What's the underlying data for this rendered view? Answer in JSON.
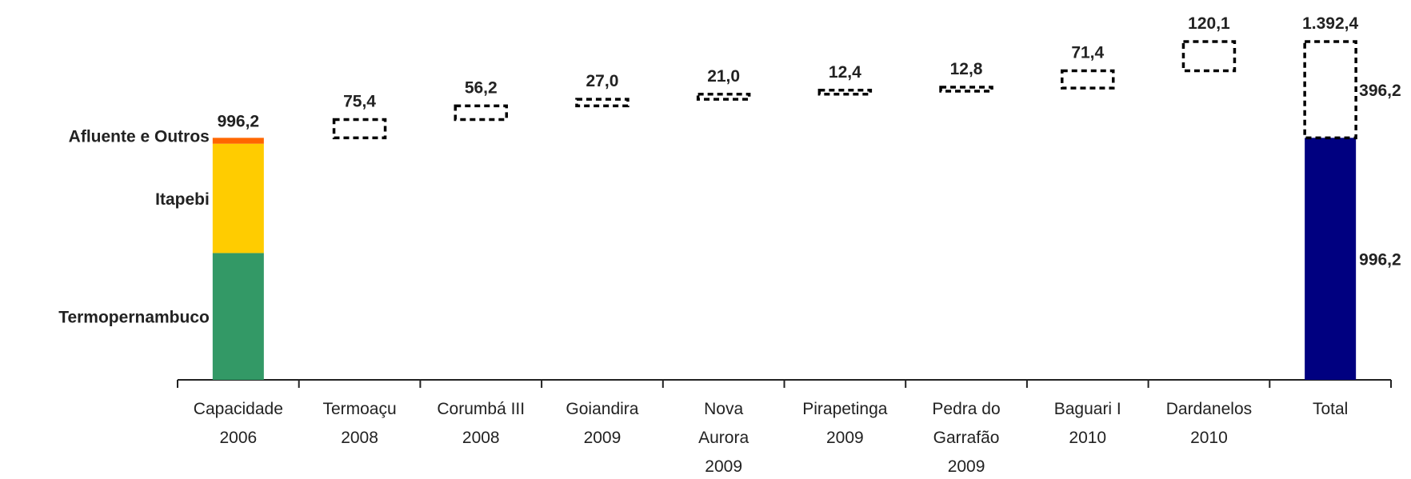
{
  "chart_data": {
    "type": "bar",
    "subtype": "waterfall",
    "ylim": [
      0,
      1500
    ],
    "grid": false,
    "categories": [
      [
        "Capacidade",
        "2006"
      ],
      [
        "Termoaçu",
        "2008"
      ],
      [
        "Corumbá III",
        "2008"
      ],
      [
        "Goiandira",
        "2009"
      ],
      [
        "Nova",
        "Aurora",
        "2009"
      ],
      [
        "Pirapetinga",
        "2009"
      ],
      [
        "Pedra do",
        "Garrafão",
        "2009"
      ],
      [
        "Baguari I",
        "2010"
      ],
      [
        "Dardanelos",
        "2010"
      ],
      [
        "Total"
      ]
    ],
    "initial": {
      "total_label": "996,2",
      "total": 996.2,
      "segments": [
        {
          "name": "Termopernambuco",
          "value": 522,
          "color": "#339966"
        },
        {
          "name": "Itapebi",
          "value": 450,
          "color": "#FFCC00"
        },
        {
          "name": "Afluente e Outros",
          "value": 24.2,
          "color": "#FF6600"
        }
      ]
    },
    "increments": [
      {
        "value": 75.4,
        "label": "75,4"
      },
      {
        "value": 56.2,
        "label": "56,2"
      },
      {
        "value": 27.0,
        "label": "27,0"
      },
      {
        "value": 21.0,
        "label": "21,0"
      },
      {
        "value": 12.4,
        "label": "12,4"
      },
      {
        "value": 12.8,
        "label": "12,8"
      },
      {
        "value": 71.4,
        "label": "71,4"
      },
      {
        "value": 120.1,
        "label": "120,1"
      }
    ],
    "total": {
      "value": 1392.4,
      "label": "1.392,4",
      "base": 996.2,
      "base_label": "996,2",
      "base_color": "#000080",
      "added": 396.2,
      "added_label": "396,2"
    }
  }
}
